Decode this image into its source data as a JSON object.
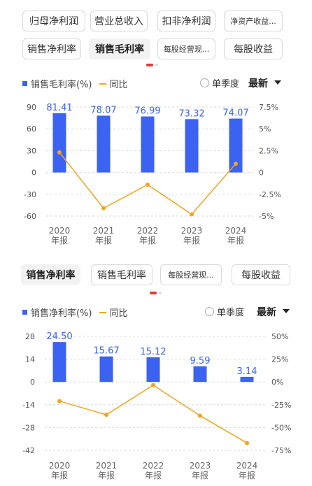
{
  "top_tabs": {
    "row1": [
      "归母净利润",
      "营业总收入",
      "扣非净利润",
      "净资产收益..."
    ],
    "row2": [
      "销售净利率",
      "销售毛利率",
      "每股经营现...",
      "每股收益"
    ],
    "active": "销售毛利率"
  },
  "second_tabs": {
    "items": [
      "销售净利率",
      "销售毛利率",
      "每股经营现...",
      "每股收益"
    ],
    "active": "销售净利率"
  },
  "controls": {
    "single_quarter": "单季度",
    "latest": "最新"
  },
  "colors": {
    "bar": "#3b62f0",
    "line": "#f0a51e",
    "active_dot": "#e03a3a"
  },
  "chart_data": [
    {
      "type": "bar",
      "categories": [
        "2020\n年报",
        "2021\n年报",
        "2022\n年报",
        "2023\n年报",
        "2024\n年报"
      ],
      "series": [
        {
          "name": "销售毛利率(%)",
          "type": "bar",
          "axis": "left",
          "values": [
            81.41,
            78.07,
            76.99,
            73.32,
            74.07
          ]
        },
        {
          "name": "同比",
          "type": "line",
          "axis": "right",
          "values": [
            2.3,
            -4.1,
            -1.4,
            -4.8,
            1.0
          ]
        }
      ],
      "left_ticks": [
        "90",
        "60",
        "30",
        "0",
        "-30",
        "-60"
      ],
      "right_ticks": [
        "7.5%",
        "5%",
        "2.5%",
        "0",
        "-2.5%",
        "-5%"
      ],
      "ylim_left": [
        -60,
        90
      ],
      "ylim_right": [
        -5,
        7.5
      ],
      "legend": "top-left"
    },
    {
      "type": "bar",
      "categories": [
        "2020\n年报",
        "2021\n年报",
        "2022\n年报",
        "2023\n年报",
        "2024\n年报"
      ],
      "series": [
        {
          "name": "销售净利率(%)",
          "type": "bar",
          "axis": "left",
          "values": [
            24.5,
            15.67,
            15.12,
            9.59,
            3.14
          ]
        },
        {
          "name": "同比",
          "type": "line",
          "axis": "right",
          "values": [
            -21,
            -36,
            -3.5,
            -37,
            -67
          ]
        }
      ],
      "left_ticks": [
        "28",
        "14",
        "0",
        "-14",
        "-28",
        "-42"
      ],
      "right_ticks": [
        "50%",
        "25%",
        "0%",
        "-25%",
        "-50%",
        "-75%"
      ],
      "ylim_left": [
        -42,
        28
      ],
      "ylim_right": [
        -75,
        50
      ],
      "legend": "top-left"
    }
  ]
}
